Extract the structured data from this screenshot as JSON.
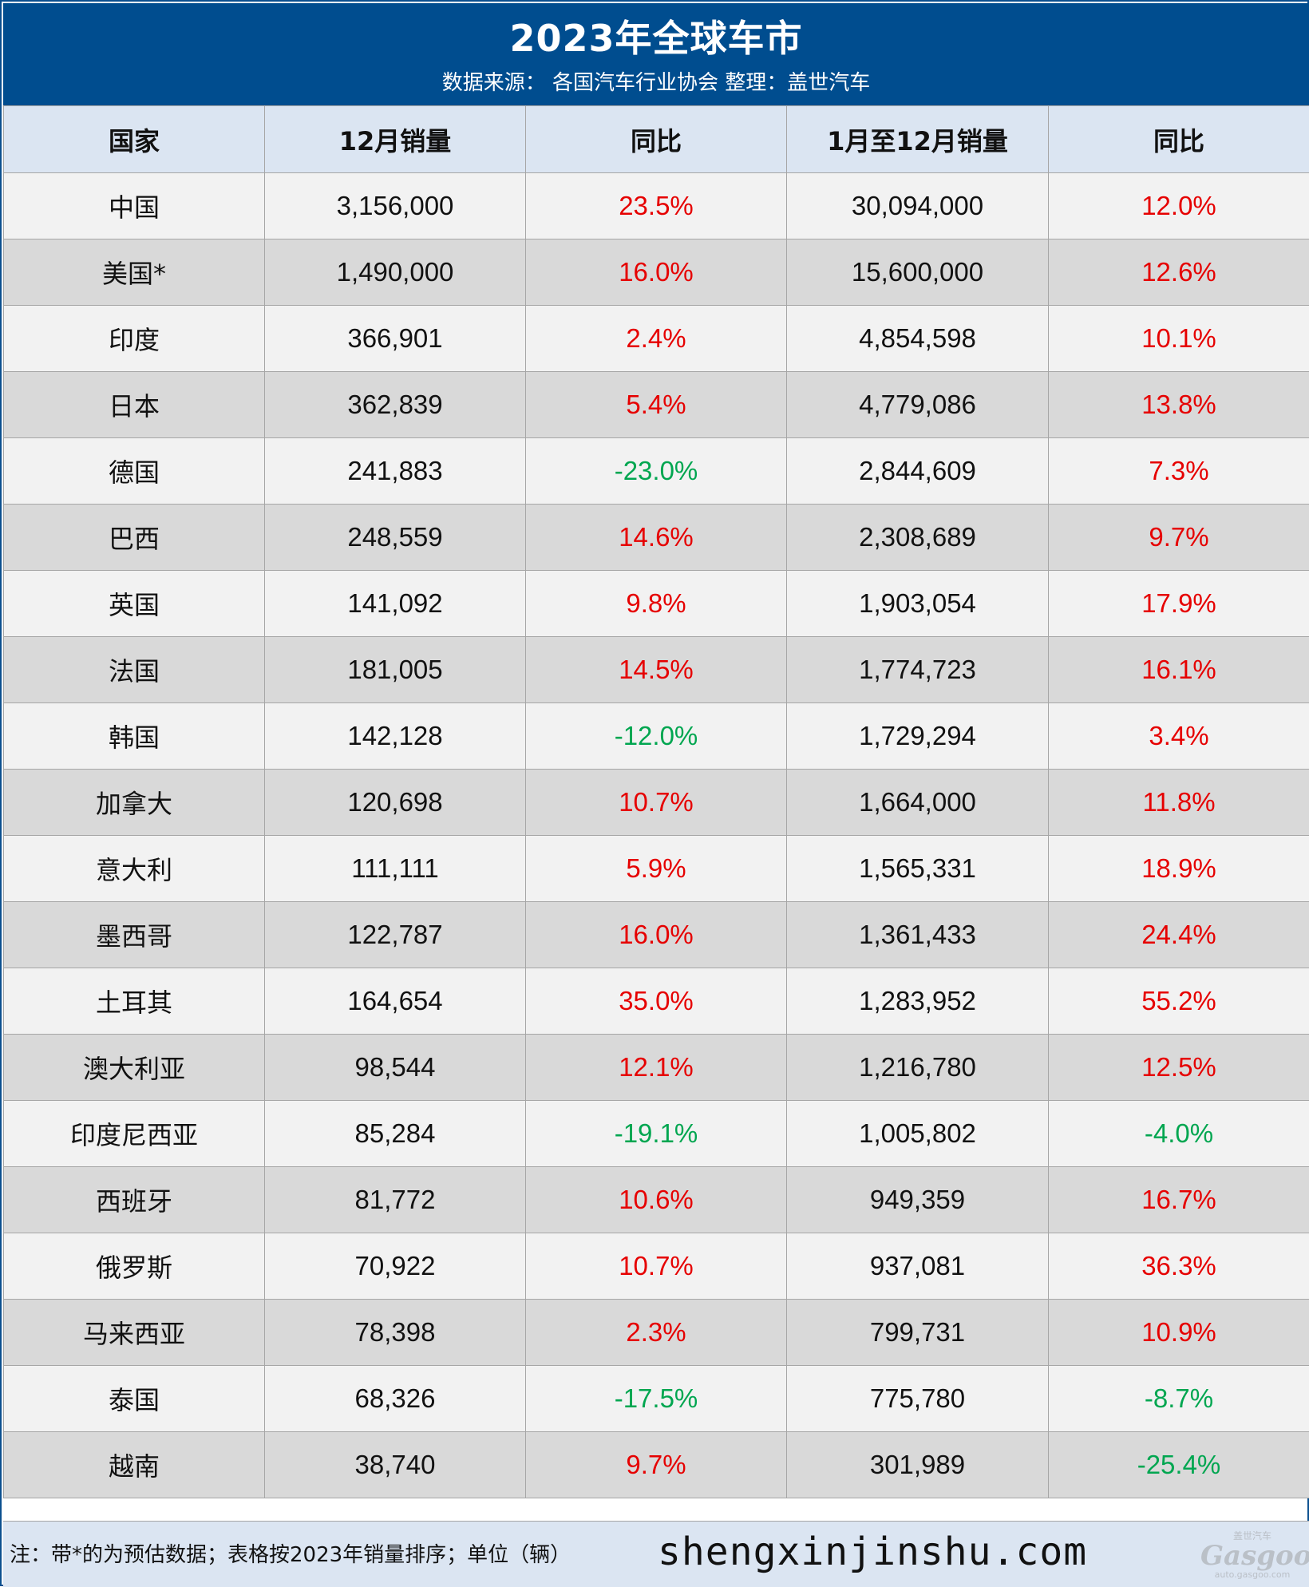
{
  "header": {
    "title": "2023年全球车市",
    "subtitle": "数据来源： 各国汽车行业协会 整理：盖世汽车"
  },
  "table": {
    "columns": [
      "国家",
      "12月销量",
      "同比",
      "1月至12月销量",
      "同比"
    ],
    "rows": [
      {
        "country": "中国",
        "dec_sales": "3,156,000",
        "dec_yoy": "23.5%",
        "ytd_sales": "30,094,000",
        "ytd_yoy": "12.0%"
      },
      {
        "country": "美国*",
        "dec_sales": "1,490,000",
        "dec_yoy": "16.0%",
        "ytd_sales": "15,600,000",
        "ytd_yoy": "12.6%"
      },
      {
        "country": "印度",
        "dec_sales": "366,901",
        "dec_yoy": "2.4%",
        "ytd_sales": "4,854,598",
        "ytd_yoy": "10.1%"
      },
      {
        "country": "日本",
        "dec_sales": "362,839",
        "dec_yoy": "5.4%",
        "ytd_sales": "4,779,086",
        "ytd_yoy": "13.8%"
      },
      {
        "country": "德国",
        "dec_sales": "241,883",
        "dec_yoy": "-23.0%",
        "ytd_sales": "2,844,609",
        "ytd_yoy": "7.3%"
      },
      {
        "country": "巴西",
        "dec_sales": "248,559",
        "dec_yoy": "14.6%",
        "ytd_sales": "2,308,689",
        "ytd_yoy": "9.7%"
      },
      {
        "country": "英国",
        "dec_sales": "141,092",
        "dec_yoy": "9.8%",
        "ytd_sales": "1,903,054",
        "ytd_yoy": "17.9%"
      },
      {
        "country": "法国",
        "dec_sales": "181,005",
        "dec_yoy": "14.5%",
        "ytd_sales": "1,774,723",
        "ytd_yoy": "16.1%"
      },
      {
        "country": "韩国",
        "dec_sales": "142,128",
        "dec_yoy": "-12.0%",
        "ytd_sales": "1,729,294",
        "ytd_yoy": "3.4%"
      },
      {
        "country": "加拿大",
        "dec_sales": "120,698",
        "dec_yoy": "10.7%",
        "ytd_sales": "1,664,000",
        "ytd_yoy": "11.8%"
      },
      {
        "country": "意大利",
        "dec_sales": "111,111",
        "dec_yoy": "5.9%",
        "ytd_sales": "1,565,331",
        "ytd_yoy": "18.9%"
      },
      {
        "country": "墨西哥",
        "dec_sales": "122,787",
        "dec_yoy": "16.0%",
        "ytd_sales": "1,361,433",
        "ytd_yoy": "24.4%"
      },
      {
        "country": "土耳其",
        "dec_sales": "164,654",
        "dec_yoy": "35.0%",
        "ytd_sales": "1,283,952",
        "ytd_yoy": "55.2%"
      },
      {
        "country": "澳大利亚",
        "dec_sales": "98,544",
        "dec_yoy": "12.1%",
        "ytd_sales": "1,216,780",
        "ytd_yoy": "12.5%"
      },
      {
        "country": "印度尼西亚",
        "dec_sales": "85,284",
        "dec_yoy": "-19.1%",
        "ytd_sales": "1,005,802",
        "ytd_yoy": "-4.0%"
      },
      {
        "country": "西班牙",
        "dec_sales": "81,772",
        "dec_yoy": "10.6%",
        "ytd_sales": "949,359",
        "ytd_yoy": "16.7%"
      },
      {
        "country": "俄罗斯",
        "dec_sales": "70,922",
        "dec_yoy": "10.7%",
        "ytd_sales": "937,081",
        "ytd_yoy": "36.3%"
      },
      {
        "country": "马来西亚",
        "dec_sales": "78,398",
        "dec_yoy": "2.3%",
        "ytd_sales": "799,731",
        "ytd_yoy": "10.9%"
      },
      {
        "country": "泰国",
        "dec_sales": "68,326",
        "dec_yoy": "-17.5%",
        "ytd_sales": "775,780",
        "ytd_yoy": "-8.7%"
      },
      {
        "country": "越南",
        "dec_sales": "38,740",
        "dec_yoy": "9.7%",
        "ytd_sales": "301,989",
        "ytd_yoy": "-25.4%"
      }
    ]
  },
  "footer": {
    "note": "注：带*的为预估数据；表格按2023年销量排序；单位（辆）",
    "watermark": "shengxinjinshu.com",
    "logo_top": "盖世汽车",
    "logo_mark": "Gasgoo",
    "logo_sub": "auto.gasgoo.com"
  },
  "colors": {
    "header_bg": "#004d8f",
    "header_row_bg": "#dbe5f2",
    "row_light": "#f2f2f2",
    "row_dark": "#d9d9d9",
    "positive": "#e60000",
    "negative": "#00a650"
  }
}
